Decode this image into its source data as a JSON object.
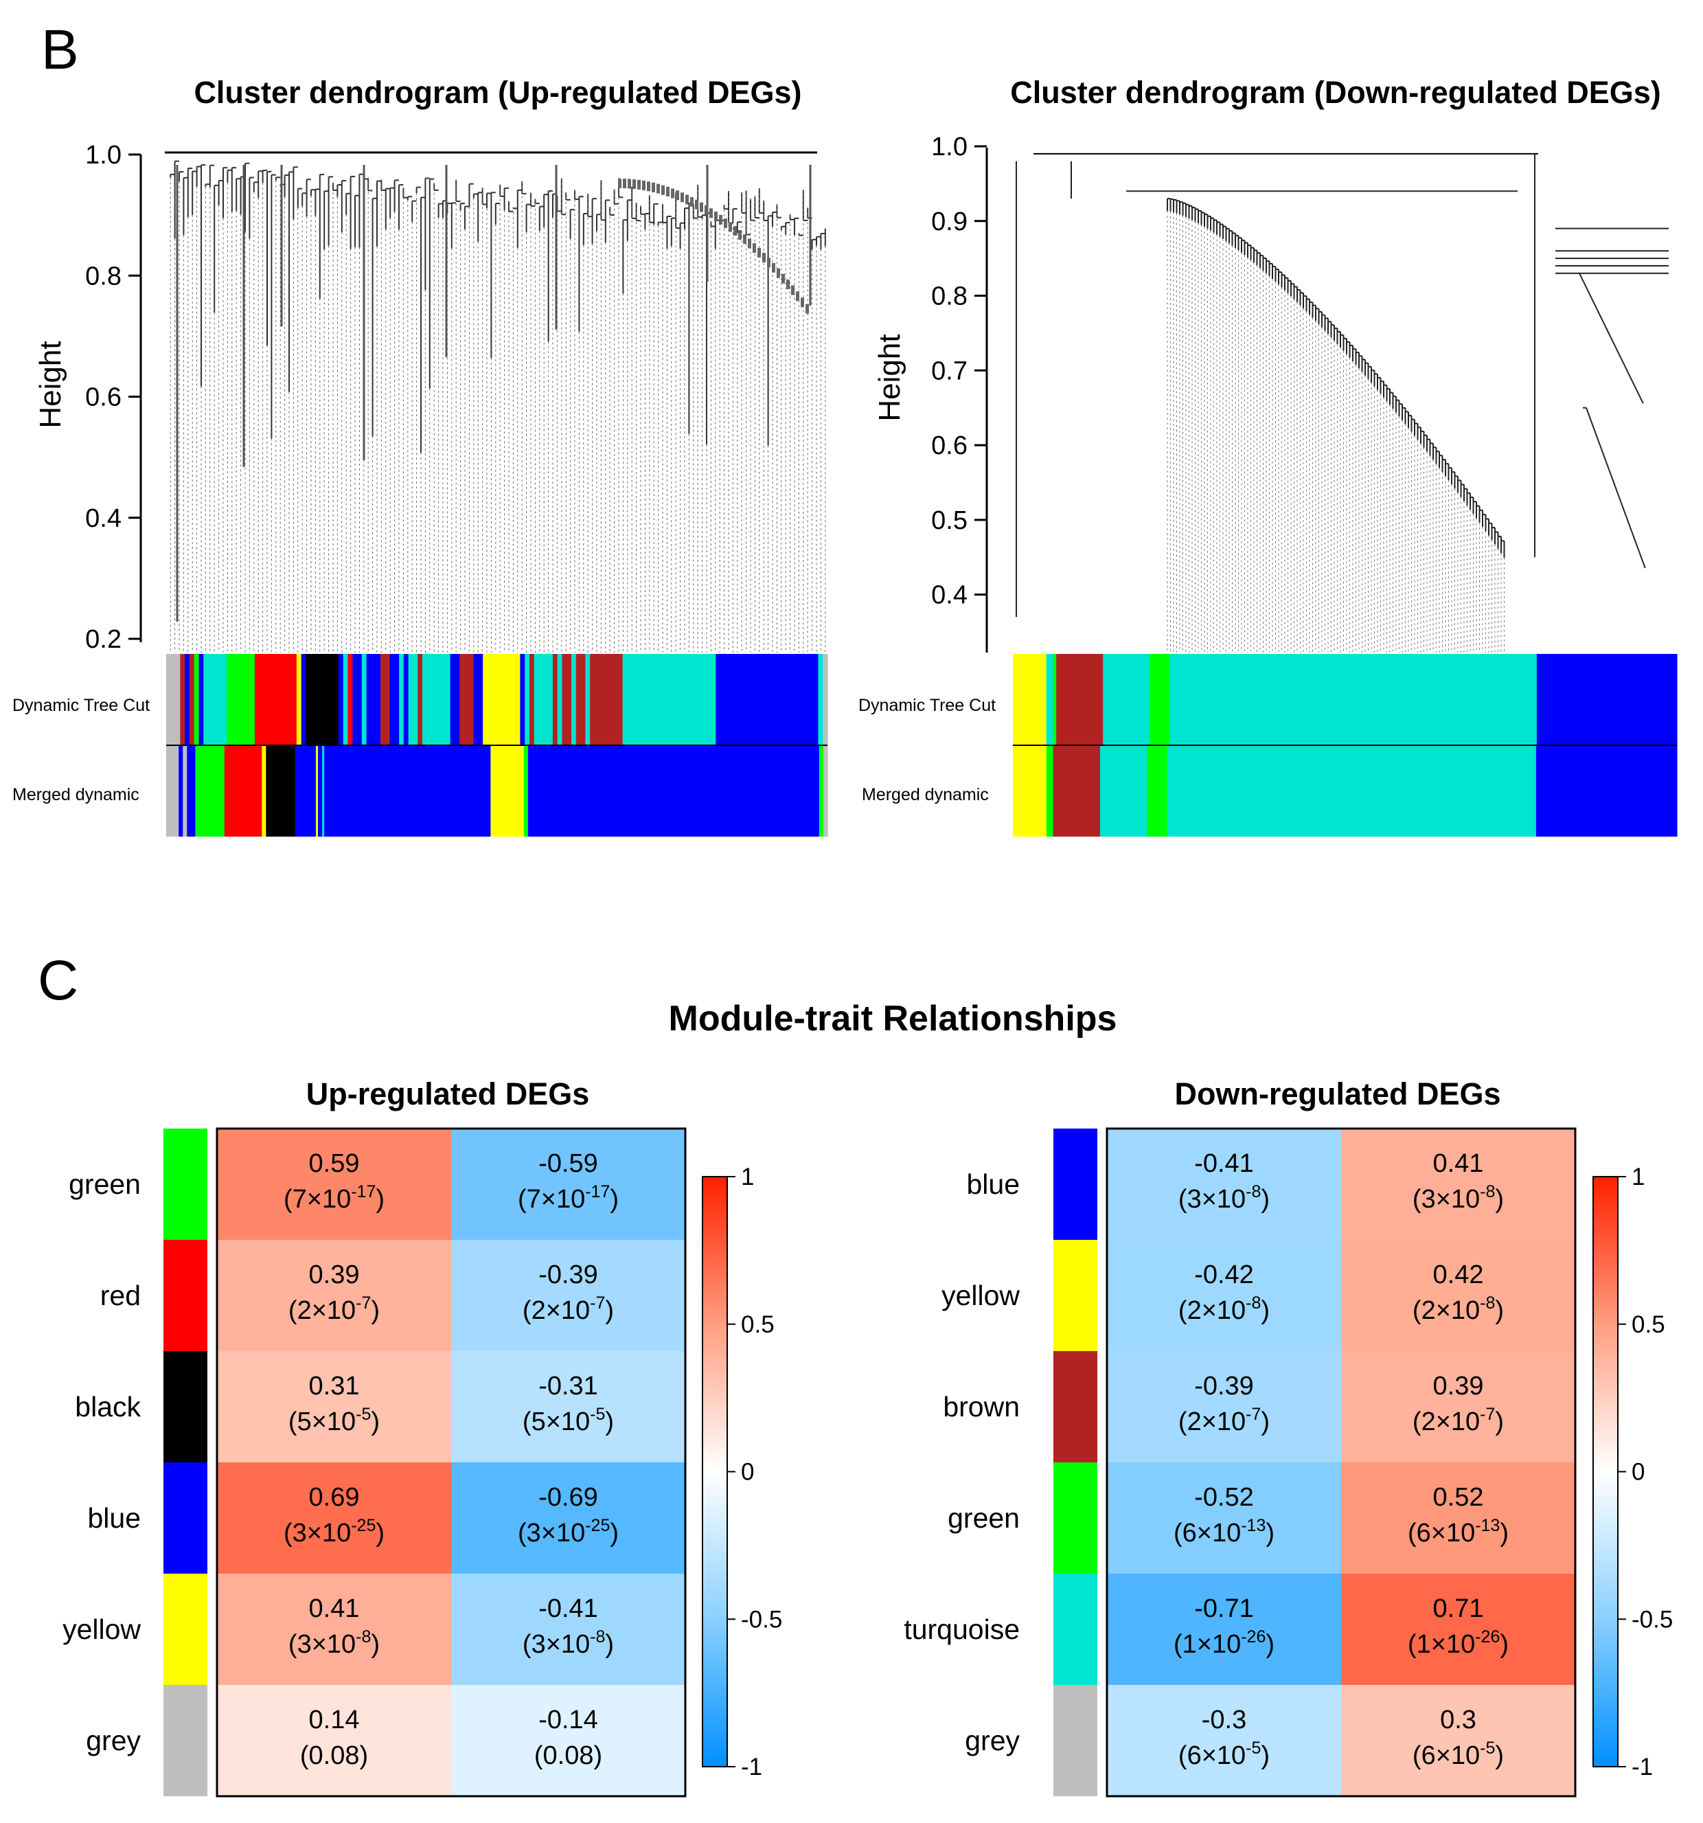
{
  "panels": {
    "B_label": "B",
    "C_label": "C"
  },
  "chart_data": [
    {
      "type": "dendrogram",
      "title": "Cluster dendrogram (Up-regulated DEGs)",
      "ylabel": "Height",
      "ylim": [
        0.2,
        1.0
      ],
      "yticks": [
        "1.0",
        "0.8",
        "0.6",
        "0.4",
        "0.2"
      ],
      "color_rows": [
        "Dynamic Tree Cut",
        "Merged dynamic"
      ],
      "dynamic_tree_cut": [
        {
          "color": "#bebebe",
          "w": 3
        },
        {
          "color": "#b22222",
          "w": 1
        },
        {
          "color": "#0000ff",
          "w": 1
        },
        {
          "color": "#b22222",
          "w": 1
        },
        {
          "color": "#00ff00",
          "w": 1
        },
        {
          "color": "#0000ff",
          "w": 1
        },
        {
          "color": "#00e5d0",
          "w": 5
        },
        {
          "color": "#00ff00",
          "w": 6
        },
        {
          "color": "#ff0000",
          "w": 9
        },
        {
          "color": "#ffff00",
          "w": 1
        },
        {
          "color": "#0000ff",
          "w": 1
        },
        {
          "color": "#000000",
          "w": 7
        },
        {
          "color": "#0000ff",
          "w": 1
        },
        {
          "color": "#00e5d0",
          "w": 1
        },
        {
          "color": "#ff0000",
          "w": 1
        },
        {
          "color": "#0000ff",
          "w": 2
        },
        {
          "color": "#00e5d0",
          "w": 1
        },
        {
          "color": "#0000ff",
          "w": 3
        },
        {
          "color": "#b22222",
          "w": 2
        },
        {
          "color": "#0000ff",
          "w": 2
        },
        {
          "color": "#00e5d0",
          "w": 1
        },
        {
          "color": "#0000ff",
          "w": 1
        },
        {
          "color": "#00e5d0",
          "w": 2
        },
        {
          "color": "#b22222",
          "w": 1
        },
        {
          "color": "#00e5d0",
          "w": 6
        },
        {
          "color": "#0000ff",
          "w": 2
        },
        {
          "color": "#b22222",
          "w": 3
        },
        {
          "color": "#0000ff",
          "w": 2
        },
        {
          "color": "#ffff00",
          "w": 8
        },
        {
          "color": "#0000ff",
          "w": 1
        },
        {
          "color": "#00e5d0",
          "w": 1
        },
        {
          "color": "#b22222",
          "w": 1
        },
        {
          "color": "#00e5d0",
          "w": 4
        },
        {
          "color": "#b22222",
          "w": 1
        },
        {
          "color": "#00e5d0",
          "w": 1
        },
        {
          "color": "#b22222",
          "w": 2
        },
        {
          "color": "#00e5d0",
          "w": 1
        },
        {
          "color": "#b22222",
          "w": 2
        },
        {
          "color": "#00e5d0",
          "w": 1
        },
        {
          "color": "#b22222",
          "w": 7
        },
        {
          "color": "#00e5d0",
          "w": 20
        },
        {
          "color": "#0000ff",
          "w": 22
        },
        {
          "color": "#00e5d0",
          "w": 1
        },
        {
          "color": "#bebebe",
          "w": 1
        }
      ],
      "merged_dynamic": [
        {
          "color": "#bebebe",
          "w": 3
        },
        {
          "color": "#0000ff",
          "w": 1
        },
        {
          "color": "#bebebe",
          "w": 1
        },
        {
          "color": "#0000ff",
          "w": 2
        },
        {
          "color": "#00ff00",
          "w": 7
        },
        {
          "color": "#ff0000",
          "w": 9
        },
        {
          "color": "#ffff00",
          "w": 1
        },
        {
          "color": "#000000",
          "w": 7
        },
        {
          "color": "#0000ff",
          "w": 5
        },
        {
          "color": "#ffff00",
          "w": 0.5
        },
        {
          "color": "#0000ff",
          "w": 1
        },
        {
          "color": "#00e5d0",
          "w": 0.5
        },
        {
          "color": "#0000ff",
          "w": 40
        },
        {
          "color": "#ffff00",
          "w": 8
        },
        {
          "color": "#00ff00",
          "w": 1
        },
        {
          "color": "#0000ff",
          "w": 70
        },
        {
          "color": "#00ff00",
          "w": 1
        },
        {
          "color": "#bebebe",
          "w": 1
        }
      ]
    },
    {
      "type": "dendrogram",
      "title": "Cluster dendrogram (Down-regulated DEGs)",
      "ylabel": "Height",
      "ylim": [
        0.35,
        1.0
      ],
      "yticks": [
        "1.0",
        "0.9",
        "0.8",
        "0.7",
        "0.6",
        "0.5",
        "0.4"
      ],
      "color_rows": [
        "Dynamic Tree Cut",
        "Merged dynamic"
      ],
      "dynamic_tree_cut": [
        {
          "color": "#ffff00",
          "w": 5
        },
        {
          "color": "#00e5d0",
          "w": 1
        },
        {
          "color": "#00ff00",
          "w": 0.5
        },
        {
          "color": "#b22222",
          "w": 7
        },
        {
          "color": "#00e5d0",
          "w": 7
        },
        {
          "color": "#00ff00",
          "w": 3
        },
        {
          "color": "#00e5d0",
          "w": 55
        },
        {
          "color": "#0000ff",
          "w": 21
        }
      ],
      "merged_dynamic": [
        {
          "color": "#ffff00",
          "w": 5
        },
        {
          "color": "#00ff00",
          "w": 1
        },
        {
          "color": "#b22222",
          "w": 7
        },
        {
          "color": "#00e5d0",
          "w": 7
        },
        {
          "color": "#00ff00",
          "w": 3
        },
        {
          "color": "#00e5d0",
          "w": 55
        },
        {
          "color": "#0000ff",
          "w": 21
        }
      ]
    },
    {
      "type": "heatmap",
      "suptitle": "Module-trait Relationships",
      "title": "Up-regulated DEGs",
      "rows": [
        {
          "label": "green",
          "color": "#00ff00",
          "cells": [
            {
              "value": 0.59,
              "p": "(7×10",
              "exp": "-17",
              "close": ")"
            },
            {
              "value": -0.59,
              "p": "(7×10",
              "exp": "-17",
              "close": ")"
            }
          ]
        },
        {
          "label": "red",
          "color": "#ff0000",
          "cells": [
            {
              "value": 0.39,
              "p": "(2×10",
              "exp": "-7",
              "close": ")"
            },
            {
              "value": -0.39,
              "p": "(2×10",
              "exp": "-7",
              "close": ")"
            }
          ]
        },
        {
          "label": "black",
          "color": "#000000",
          "cells": [
            {
              "value": 0.31,
              "p": "(5×10",
              "exp": "-5",
              "close": ")"
            },
            {
              "value": -0.31,
              "p": "(5×10",
              "exp": "-5",
              "close": ")"
            }
          ]
        },
        {
          "label": "blue",
          "color": "#0000ff",
          "cells": [
            {
              "value": 0.69,
              "p": "(3×10",
              "exp": "-25",
              "close": ")"
            },
            {
              "value": -0.69,
              "p": "(3×10",
              "exp": "-25",
              "close": ")"
            }
          ]
        },
        {
          "label": "yellow",
          "color": "#ffff00",
          "cells": [
            {
              "value": 0.41,
              "p": "(3×10",
              "exp": "-8",
              "close": ")"
            },
            {
              "value": -0.41,
              "p": "(3×10",
              "exp": "-8",
              "close": ")"
            }
          ]
        },
        {
          "label": "grey",
          "color": "#bebebe",
          "cells": [
            {
              "value": 0.14,
              "p": "(0.08)",
              "exp": "",
              "close": ""
            },
            {
              "value": -0.14,
              "p": "(0.08)",
              "exp": "",
              "close": ""
            }
          ]
        }
      ],
      "colorbar_ticks": [
        "1",
        "0.5",
        "0",
        "-0.5",
        "-1"
      ],
      "colorbar_range": [
        -1,
        1
      ]
    },
    {
      "type": "heatmap",
      "title": "Down-regulated DEGs",
      "rows": [
        {
          "label": "blue",
          "color": "#0000ff",
          "cells": [
            {
              "value": -0.41,
              "p": "(3×10",
              "exp": "-8",
              "close": ")"
            },
            {
              "value": 0.41,
              "p": "(3×10",
              "exp": "-8",
              "close": ")"
            }
          ]
        },
        {
          "label": "yellow",
          "color": "#ffff00",
          "cells": [
            {
              "value": -0.42,
              "p": "(2×10",
              "exp": "-8",
              "close": ")"
            },
            {
              "value": 0.42,
              "p": "(2×10",
              "exp": "-8",
              "close": ")"
            }
          ]
        },
        {
          "label": "brown",
          "color": "#b22222",
          "cells": [
            {
              "value": -0.39,
              "p": "(2×10",
              "exp": "-7",
              "close": ")"
            },
            {
              "value": 0.39,
              "p": "(2×10",
              "exp": "-7",
              "close": ")"
            }
          ]
        },
        {
          "label": "green",
          "color": "#00ff00",
          "cells": [
            {
              "value": -0.52,
              "p": "(6×10",
              "exp": "-13",
              "close": ")"
            },
            {
              "value": 0.52,
              "p": "(6×10",
              "exp": "-13",
              "close": ")"
            }
          ]
        },
        {
          "label": "turquoise",
          "color": "#00e5d0",
          "cells": [
            {
              "value": -0.71,
              "p": "(1×10",
              "exp": "-26",
              "close": ")"
            },
            {
              "value": 0.71,
              "p": "(1×10",
              "exp": "-26",
              "close": ")"
            }
          ]
        },
        {
          "label": "grey",
          "color": "#bebebe",
          "cells": [
            {
              "value": -0.3,
              "p": "(6×10",
              "exp": "-5",
              "close": ")"
            },
            {
              "value": 0.3,
              "p": "(6×10",
              "exp": "-5",
              "close": ")"
            }
          ]
        }
      ],
      "colorbar_ticks": [
        "1",
        "0.5",
        "0",
        "-0.5",
        "-1"
      ],
      "colorbar_range": [
        -1,
        1
      ]
    }
  ]
}
